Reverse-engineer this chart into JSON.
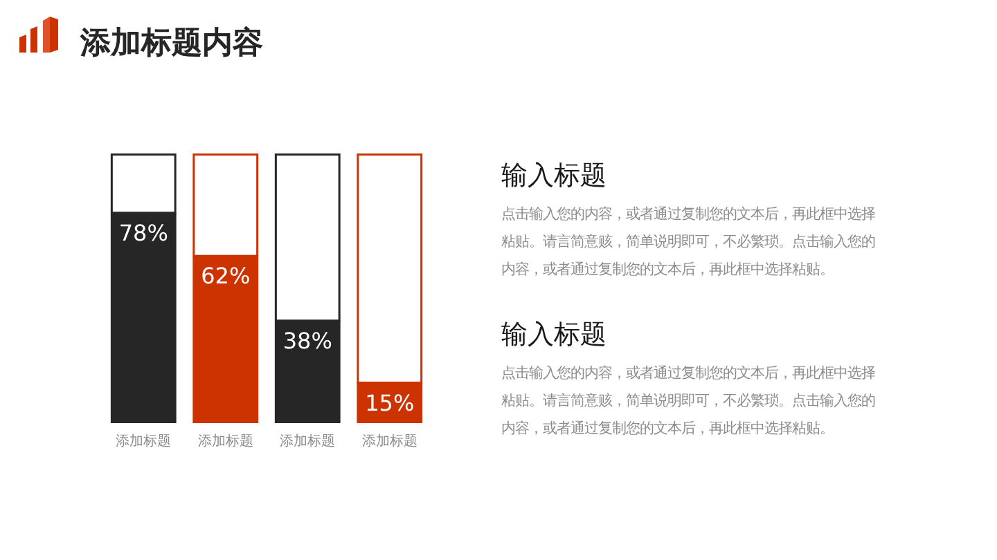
{
  "chart_data": {
    "type": "bar",
    "title": "添加标题内容",
    "categories": [
      "添加标题",
      "添加标题",
      "添加标题",
      "添加标题"
    ],
    "stacked": true,
    "series": [
      {
        "colors": [
          "#262626",
          "#cc3300",
          "#262626",
          "#cc3300"
        ],
        "values": [
          78,
          62,
          38,
          15
        ],
        "value_labels": [
          "78%",
          "62%",
          "38%",
          "15%"
        ]
      },
      {
        "color": "#ffffff",
        "values": [
          22,
          38,
          62,
          85
        ]
      }
    ],
    "ylim": [
      0,
      100
    ],
    "tick_labels": "x",
    "annotations": [
      "输入标题",
      "点击输入您的内容，或者通过复制您的文本后，再此框中选择粘贴。请言简意赅，简单说明即可，不必繁琐。点击输入您的内容，或者通过复制您的文本后，再此框中选择粘贴。",
      "输入标题",
      "点击输入您的内容，或者通过复制您的文本后，再此框中选择粘贴。请言简意赅，简单说明即可，不必繁琐。点击输入您的内容，或者通过复制您的文本后，再此框中选择粘贴。"
    ]
  }
}
